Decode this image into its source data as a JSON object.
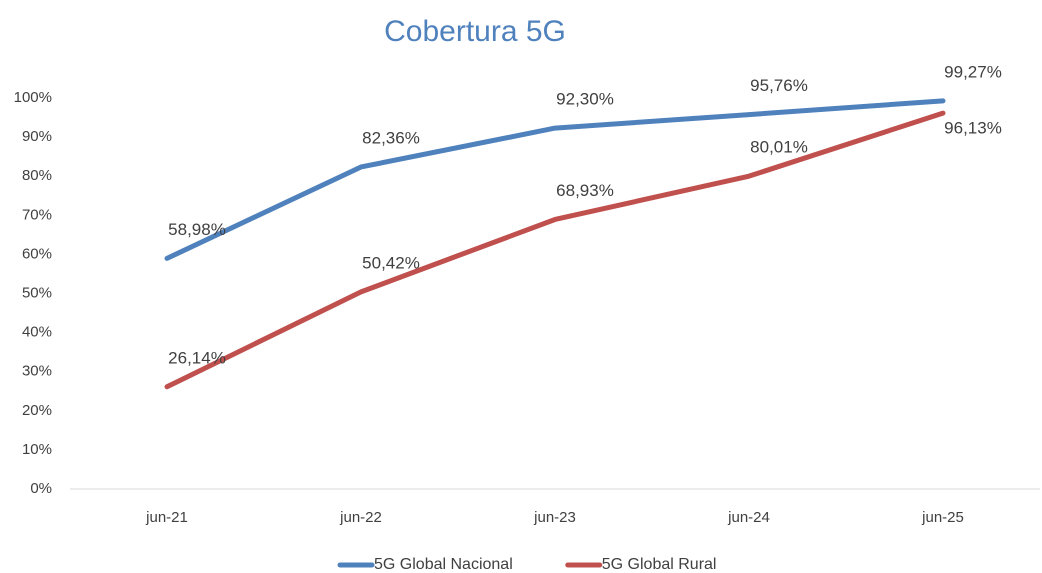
{
  "chart_data": {
    "type": "line",
    "title": "Cobertura 5G",
    "categories": [
      "jun-21",
      "jun-22",
      "jun-23",
      "jun-24",
      "jun-25"
    ],
    "series": [
      {
        "name": "5G Global Nacional",
        "color": "#4f81bd",
        "values": [
          58.98,
          82.36,
          92.3,
          95.76,
          99.27
        ],
        "value_labels": [
          "58,98%",
          "82,36%",
          "92,30%",
          "95,76%",
          "99,27%"
        ]
      },
      {
        "name": "5G Global Rural",
        "color": "#c0504d",
        "values": [
          26.14,
          50.42,
          68.93,
          80.01,
          96.13
        ],
        "value_labels": [
          "26,14%",
          "50,42%",
          "68,93%",
          "80,01%",
          "96,13%"
        ]
      }
    ],
    "ylim": [
      0,
      100
    ],
    "yticks": [
      {
        "value": 0,
        "label": "0%"
      },
      {
        "value": 10,
        "label": "10%"
      },
      {
        "value": 20,
        "label": "20%"
      },
      {
        "value": 30,
        "label": "30%"
      },
      {
        "value": 40,
        "label": "40%"
      },
      {
        "value": 50,
        "label": "50%"
      },
      {
        "value": 60,
        "label": "60%"
      },
      {
        "value": 70,
        "label": "70%"
      },
      {
        "value": 80,
        "label": "80%"
      },
      {
        "value": 90,
        "label": "90%"
      },
      {
        "value": 100,
        "label": "100%"
      }
    ],
    "grid": false,
    "legend": "bottom"
  }
}
